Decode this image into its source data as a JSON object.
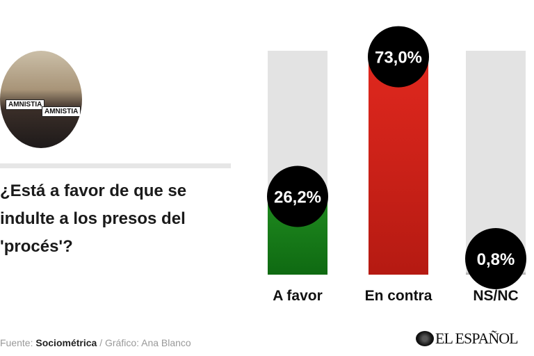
{
  "header": {
    "question": "¿Está a favor de que se indulte a los presos del 'procés'?",
    "photo_signs": [
      "AMNISTIA",
      "AMNISTIA"
    ]
  },
  "footer": {
    "source_prefix": "Fuente:",
    "source": "Sociométrica",
    "separator": " / ",
    "credit": "Gráfico: Ana Blanco",
    "logo": "EL ESPAÑOL"
  },
  "chart_data": {
    "type": "bar",
    "categories": [
      "A favor",
      "En contra",
      "NS/NC"
    ],
    "values": [
      26.2,
      73.0,
      0.8
    ],
    "data_labels": [
      "26,2%",
      "73,0%",
      "0,8%"
    ],
    "colors": [
      "#1f8a1f",
      "#e0281e",
      "#cccccc"
    ],
    "ylim": [
      0,
      75
    ],
    "ylabel": "",
    "xlabel": "",
    "grid": false
  }
}
